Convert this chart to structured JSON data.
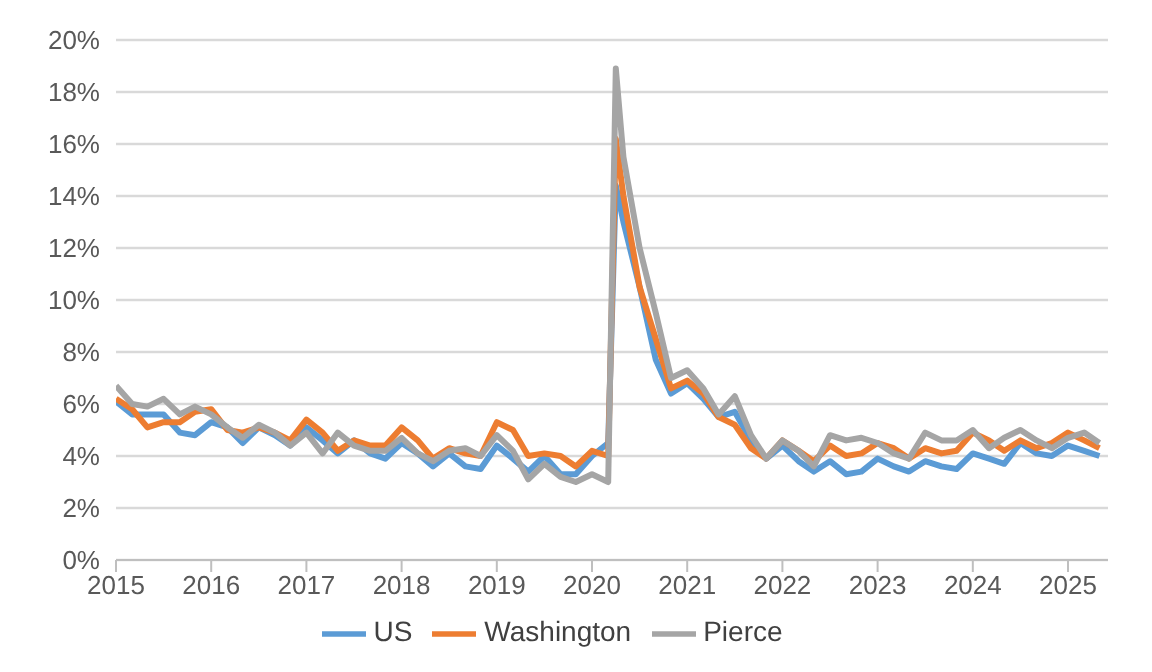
{
  "chart_data": {
    "type": "line",
    "x": [
      2015,
      2015.17,
      2015.33,
      2015.5,
      2015.67,
      2015.83,
      2016,
      2016.17,
      2016.33,
      2016.5,
      2016.67,
      2016.83,
      2017,
      2017.17,
      2017.33,
      2017.5,
      2017.67,
      2017.83,
      2018,
      2018.17,
      2018.33,
      2018.5,
      2018.67,
      2018.83,
      2019,
      2019.17,
      2019.33,
      2019.5,
      2019.67,
      2019.83,
      2020,
      2020.17,
      2020.25,
      2020.33,
      2020.5,
      2020.67,
      2020.83,
      2021,
      2021.17,
      2021.33,
      2021.5,
      2021.67,
      2021.83,
      2022,
      2022.17,
      2022.33,
      2022.5,
      2022.67,
      2022.83,
      2023,
      2023.17,
      2023.33,
      2023.5,
      2023.67,
      2023.83,
      2024,
      2024.17,
      2024.33,
      2024.5,
      2024.67,
      2024.83,
      2025,
      2025.17,
      2025.33
    ],
    "series": [
      {
        "name": "US",
        "color": "#5b9bd5",
        "values": [
          6.1,
          5.6,
          5.6,
          5.6,
          4.9,
          4.8,
          5.3,
          5.1,
          4.5,
          5.1,
          4.8,
          4.4,
          5.1,
          4.6,
          4.1,
          4.6,
          4.1,
          3.9,
          4.5,
          4.1,
          3.6,
          4.1,
          3.6,
          3.5,
          4.4,
          3.9,
          3.4,
          4.0,
          3.3,
          3.3,
          4.0,
          4.5,
          14.4,
          13.0,
          10.5,
          7.7,
          6.4,
          6.8,
          6.2,
          5.5,
          5.7,
          4.6,
          3.9,
          4.4,
          3.8,
          3.4,
          3.8,
          3.3,
          3.4,
          3.9,
          3.6,
          3.4,
          3.8,
          3.6,
          3.5,
          4.1,
          3.9,
          3.7,
          4.5,
          4.1,
          4.0,
          4.4,
          4.2,
          4.0
        ]
      },
      {
        "name": "Washington",
        "color": "#ed7d31",
        "values": [
          6.2,
          5.8,
          5.1,
          5.3,
          5.3,
          5.7,
          5.8,
          5.0,
          4.9,
          5.1,
          4.9,
          4.6,
          5.4,
          4.9,
          4.2,
          4.6,
          4.4,
          4.4,
          5.1,
          4.6,
          3.9,
          4.3,
          4.1,
          4.0,
          5.3,
          5.0,
          4.0,
          4.1,
          4.0,
          3.6,
          4.2,
          4.0,
          16.2,
          14.0,
          10.5,
          8.5,
          6.6,
          6.9,
          6.4,
          5.5,
          5.2,
          4.3,
          3.9,
          4.6,
          4.2,
          3.8,
          4.4,
          4.0,
          4.1,
          4.5,
          4.3,
          3.9,
          4.3,
          4.1,
          4.2,
          4.9,
          4.6,
          4.2,
          4.6,
          4.3,
          4.5,
          4.9,
          4.6,
          4.3
        ]
      },
      {
        "name": "Pierce",
        "color": "#a5a5a5",
        "values": [
          6.7,
          6.0,
          5.9,
          6.2,
          5.6,
          5.9,
          5.6,
          5.1,
          4.7,
          5.2,
          4.9,
          4.4,
          4.9,
          4.1,
          4.9,
          4.4,
          4.2,
          4.2,
          4.7,
          4.1,
          3.8,
          4.2,
          4.3,
          4.0,
          4.8,
          4.2,
          3.1,
          3.7,
          3.2,
          3.0,
          3.3,
          3.0,
          18.9,
          15.5,
          12.0,
          9.5,
          7.0,
          7.3,
          6.6,
          5.6,
          6.3,
          4.8,
          3.9,
          4.6,
          4.2,
          3.6,
          4.8,
          4.6,
          4.7,
          4.5,
          4.1,
          3.9,
          4.9,
          4.6,
          4.6,
          5.0,
          4.3,
          4.7,
          5.0,
          4.6,
          4.3,
          4.7,
          4.9,
          4.5
        ]
      }
    ],
    "xlim": [
      2015,
      2025.42
    ],
    "xticks": [
      2015,
      2016,
      2017,
      2018,
      2019,
      2020,
      2021,
      2022,
      2023,
      2024,
      2025
    ],
    "ylim": [
      0,
      20
    ],
    "yticks": [
      {
        "value": 0,
        "label": "0%"
      },
      {
        "value": 2,
        "label": "2%"
      },
      {
        "value": 4,
        "label": "4%"
      },
      {
        "value": 6,
        "label": "6%"
      },
      {
        "value": 8,
        "label": "8%"
      },
      {
        "value": 10,
        "label": "10%"
      },
      {
        "value": 12,
        "label": "12%"
      },
      {
        "value": 14,
        "label": "14%"
      },
      {
        "value": 16,
        "label": "16%"
      },
      {
        "value": 18,
        "label": "18%"
      },
      {
        "value": 20,
        "label": "20%"
      }
    ],
    "grid": "y",
    "legend": "bottom",
    "marker": "none",
    "line_style": "solid"
  }
}
